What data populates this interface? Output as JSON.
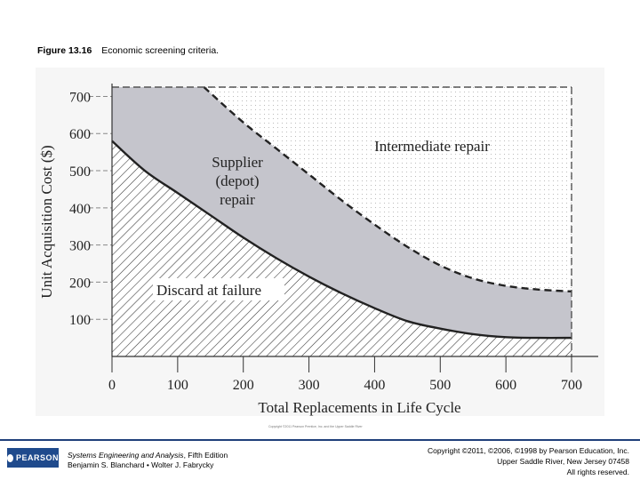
{
  "caption": {
    "figure_number": "Figure 13.16",
    "text": "Economic screening criteria."
  },
  "chart_data": {
    "type": "area",
    "title": "",
    "xlabel": "Total Replacements in Life Cycle",
    "ylabel": "Unit Acquisition Cost ($)",
    "xlim": [
      0,
      700
    ],
    "ylim": [
      0,
      725
    ],
    "xticks": [
      "0",
      "100",
      "200",
      "300",
      "400",
      "500",
      "600",
      "700"
    ],
    "yticks": [
      "100",
      "200",
      "300",
      "400",
      "500",
      "600",
      "700"
    ],
    "grid": "horizontal dashed",
    "series": [
      {
        "name": "Discard at failure",
        "x": [
          0,
          50,
          100,
          150,
          200,
          250,
          300,
          350,
          400,
          450,
          500,
          550,
          600,
          650,
          700
        ],
        "values": [
          580,
          500,
          440,
          380,
          320,
          265,
          215,
          170,
          130,
          95,
          75,
          60,
          52,
          50,
          50
        ]
      },
      {
        "name": "Supplier (depot) repair",
        "x": [
          140,
          200,
          250,
          300,
          350,
          400,
          450,
          500,
          550,
          600,
          650,
          700
        ],
        "values": [
          725,
          630,
          560,
          490,
          420,
          355,
          295,
          245,
          210,
          190,
          180,
          175
        ]
      },
      {
        "name": "Intermediate repair",
        "values": [
          725
        ]
      }
    ],
    "region_labels": {
      "supplier": [
        "Supplier",
        "(depot)",
        "repair"
      ],
      "intermediate": "Intermediate repair",
      "discard": "Discard at failure"
    },
    "credit": "Copyright ©2011 Pearson Prentice, Inc. and the Upper Saddle River"
  },
  "footer": {
    "logo_text": "PEARSON",
    "book_title": "Systems Engineering and Analysis",
    "book_edition": ", Fifth Edition",
    "authors": "Benjamin S. Blanchard • Wolter J. Fabrycky",
    "copyright_line1": "Copyright ©2011, ©2006, ©1998 by Pearson Education, Inc.",
    "copyright_line2": "Upper Saddle River, New Jersey 07458",
    "copyright_line3": "All rights reserved."
  },
  "colors": {
    "supplier_fill": "#c5c5cc",
    "plot_bg": "#ffffff",
    "frame_bg": "#f6f6f6",
    "curve": "#222222",
    "footer_rule": "#1f3f7a",
    "logo_bg": "#1f4a8c"
  }
}
